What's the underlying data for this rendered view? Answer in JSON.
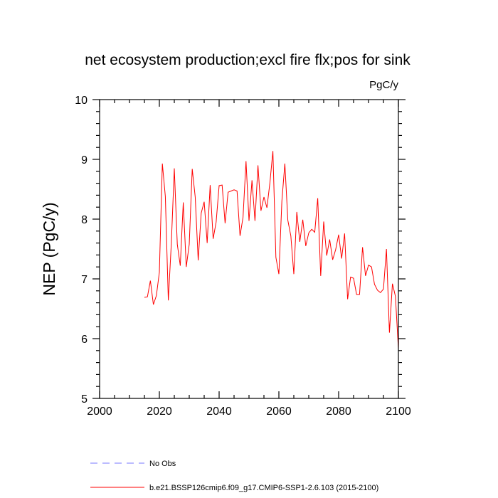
{
  "chart_data": {
    "type": "line",
    "title": "net ecosystem production;excl fire flx;pos for sink",
    "units": "PgC/y",
    "xlabel": "",
    "ylabel": "NEP  (PgC/y)",
    "xlim": [
      2000,
      2100
    ],
    "ylim": [
      5,
      10
    ],
    "xticks": [
      2000,
      2020,
      2040,
      2060,
      2080,
      2100
    ],
    "yticks": [
      5,
      6,
      7,
      8,
      9,
      10
    ],
    "series": [
      {
        "name": "b.e21.BSSP126cmip6.f09_g17.CMIP6-SSP1-2.6.103 (2015-2100)",
        "color": "#ff0000",
        "style": "solid",
        "x": [
          2015,
          2016,
          2017,
          2018,
          2019,
          2020,
          2021,
          2022,
          2023,
          2024,
          2025,
          2026,
          2027,
          2028,
          2029,
          2030,
          2031,
          2032,
          2033,
          2034,
          2035,
          2036,
          2037,
          2038,
          2039,
          2040,
          2041,
          2042,
          2043,
          2044,
          2045,
          2046,
          2047,
          2048,
          2049,
          2050,
          2051,
          2052,
          2053,
          2054,
          2055,
          2056,
          2057,
          2058,
          2059,
          2060,
          2061,
          2062,
          2063,
          2064,
          2065,
          2066,
          2067,
          2068,
          2069,
          2070,
          2071,
          2072,
          2073,
          2074,
          2075,
          2076,
          2077,
          2078,
          2079,
          2080,
          2081,
          2082,
          2083,
          2084,
          2085,
          2086,
          2087,
          2088,
          2089,
          2090,
          2091,
          2092,
          2093,
          2094,
          2095,
          2096,
          2097,
          2098,
          2099,
          2100
        ],
        "values": [
          6.69,
          6.7,
          6.97,
          6.57,
          6.72,
          7.11,
          8.93,
          8.38,
          6.64,
          7.59,
          8.85,
          7.58,
          7.22,
          8.28,
          7.2,
          7.58,
          8.84,
          8.37,
          7.31,
          8.1,
          8.29,
          7.6,
          8.57,
          7.67,
          7.95,
          8.56,
          8.57,
          7.93,
          8.45,
          8.47,
          8.49,
          8.47,
          7.72,
          8.03,
          8.97,
          7.97,
          8.65,
          7.97,
          8.9,
          8.14,
          8.37,
          8.19,
          8.61,
          9.14,
          7.36,
          7.08,
          8.3,
          8.93,
          7.98,
          7.72,
          7.08,
          8.12,
          7.62,
          7.99,
          7.55,
          7.77,
          7.83,
          7.78,
          8.35,
          7.05,
          7.96,
          7.39,
          7.66,
          7.32,
          7.49,
          7.74,
          7.34,
          7.76,
          6.66,
          7.03,
          7.01,
          6.74,
          6.74,
          7.53,
          7.05,
          7.23,
          7.2,
          6.91,
          6.81,
          6.77,
          6.83,
          7.5,
          6.1,
          6.92,
          6.71,
          5.83
        ]
      },
      {
        "name": "No Obs",
        "color": "#7a7aff",
        "style": "dashed",
        "x": [],
        "values": []
      }
    ],
    "legend_position": "bottom-left"
  }
}
